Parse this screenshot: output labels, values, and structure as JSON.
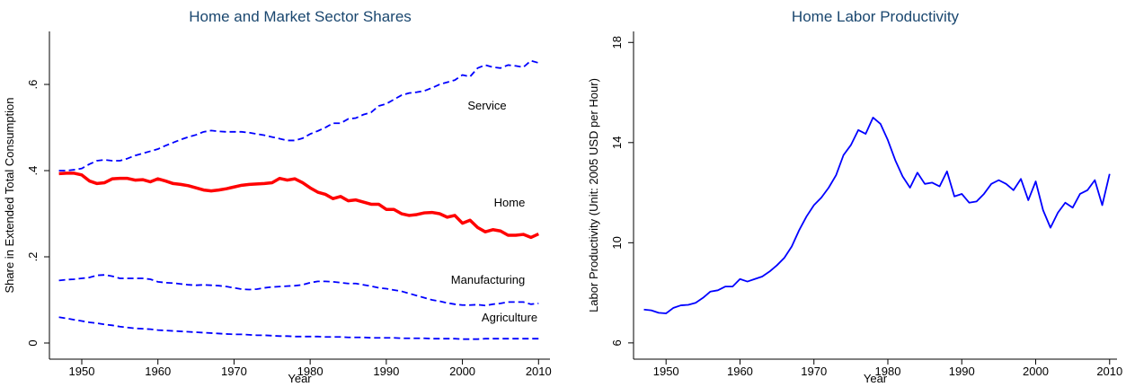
{
  "chart_data": [
    {
      "type": "line",
      "title": "Home and Market Sector Shares",
      "x_label": "Year",
      "y_label": "Share in Extended Total Consumption",
      "x": [
        1947,
        1948,
        1949,
        1950,
        1951,
        1952,
        1953,
        1954,
        1955,
        1956,
        1957,
        1958,
        1959,
        1960,
        1961,
        1962,
        1963,
        1964,
        1965,
        1966,
        1967,
        1968,
        1969,
        1970,
        1971,
        1972,
        1973,
        1974,
        1975,
        1976,
        1977,
        1978,
        1979,
        1980,
        1981,
        1982,
        1983,
        1984,
        1985,
        1986,
        1987,
        1988,
        1989,
        1990,
        1991,
        1992,
        1993,
        1994,
        1995,
        1996,
        1997,
        1998,
        1999,
        2000,
        2001,
        2002,
        2003,
        2004,
        2005,
        2006,
        2007,
        2008,
        2009,
        2010
      ],
      "series": [
        {
          "name": "Service",
          "color": "#0000ff",
          "line_style": "dashed",
          "line_width": 1.8,
          "values": [
            0.4,
            0.4,
            0.402,
            0.405,
            0.415,
            0.423,
            0.425,
            0.423,
            0.423,
            0.428,
            0.435,
            0.44,
            0.445,
            0.45,
            0.458,
            0.465,
            0.472,
            0.478,
            0.483,
            0.49,
            0.493,
            0.491,
            0.49,
            0.49,
            0.49,
            0.488,
            0.485,
            0.482,
            0.478,
            0.474,
            0.47,
            0.47,
            0.475,
            0.485,
            0.492,
            0.5,
            0.51,
            0.51,
            0.52,
            0.522,
            0.53,
            0.535,
            0.55,
            0.555,
            0.565,
            0.575,
            0.58,
            0.582,
            0.585,
            0.592,
            0.6,
            0.605,
            0.61,
            0.622,
            0.618,
            0.638,
            0.645,
            0.64,
            0.638,
            0.645,
            0.643,
            0.64,
            0.655,
            0.65
          ]
        },
        {
          "name": "Home",
          "color": "#ff0000",
          "line_style": "solid",
          "line_width": 3.5,
          "values": [
            0.393,
            0.394,
            0.394,
            0.39,
            0.376,
            0.37,
            0.372,
            0.381,
            0.382,
            0.382,
            0.378,
            0.379,
            0.374,
            0.381,
            0.376,
            0.37,
            0.368,
            0.365,
            0.36,
            0.355,
            0.353,
            0.355,
            0.358,
            0.362,
            0.366,
            0.368,
            0.369,
            0.37,
            0.372,
            0.382,
            0.378,
            0.381,
            0.372,
            0.36,
            0.35,
            0.345,
            0.335,
            0.34,
            0.33,
            0.332,
            0.327,
            0.322,
            0.322,
            0.31,
            0.31,
            0.3,
            0.296,
            0.298,
            0.302,
            0.303,
            0.3,
            0.292,
            0.296,
            0.278,
            0.285,
            0.268,
            0.258,
            0.263,
            0.26,
            0.25,
            0.25,
            0.252,
            0.245,
            0.253
          ]
        },
        {
          "name": "Manufacturing",
          "color": "#0000ff",
          "line_style": "dashed",
          "line_width": 1.8,
          "values": [
            0.145,
            0.147,
            0.148,
            0.15,
            0.152,
            0.157,
            0.158,
            0.155,
            0.15,
            0.15,
            0.15,
            0.15,
            0.148,
            0.142,
            0.14,
            0.139,
            0.137,
            0.135,
            0.134,
            0.135,
            0.134,
            0.133,
            0.131,
            0.128,
            0.125,
            0.124,
            0.125,
            0.128,
            0.13,
            0.131,
            0.132,
            0.133,
            0.135,
            0.14,
            0.143,
            0.143,
            0.142,
            0.14,
            0.138,
            0.138,
            0.135,
            0.132,
            0.128,
            0.126,
            0.123,
            0.12,
            0.115,
            0.11,
            0.105,
            0.1,
            0.097,
            0.093,
            0.09,
            0.088,
            0.088,
            0.089,
            0.087,
            0.09,
            0.092,
            0.095,
            0.095,
            0.095,
            0.09,
            0.092
          ]
        },
        {
          "name": "Agriculture",
          "color": "#0000ff",
          "line_style": "dashed",
          "line_width": 1.8,
          "values": [
            0.06,
            0.057,
            0.054,
            0.051,
            0.048,
            0.046,
            0.043,
            0.041,
            0.038,
            0.036,
            0.034,
            0.033,
            0.032,
            0.03,
            0.029,
            0.028,
            0.027,
            0.026,
            0.025,
            0.024,
            0.023,
            0.022,
            0.021,
            0.02,
            0.02,
            0.019,
            0.018,
            0.018,
            0.017,
            0.016,
            0.016,
            0.015,
            0.015,
            0.015,
            0.015,
            0.014,
            0.014,
            0.014,
            0.013,
            0.013,
            0.013,
            0.012,
            0.012,
            0.012,
            0.012,
            0.011,
            0.011,
            0.011,
            0.011,
            0.01,
            0.01,
            0.01,
            0.01,
            0.009,
            0.009,
            0.009,
            0.01,
            0.01,
            0.01,
            0.01,
            0.01,
            0.01,
            0.01,
            0.01
          ]
        }
      ],
      "xlim": [
        1945.75,
        2011.5
      ],
      "xticks": [
        1950,
        1960,
        1970,
        1980,
        1990,
        2000,
        2010
      ],
      "ylim": [
        -0.0375,
        0.723
      ],
      "yticks": [
        0,
        {
          "value": 0.2,
          "label": ".2"
        },
        {
          "value": 0.4,
          "label": ".4"
        },
        {
          "value": 0.6,
          "label": ".6"
        }
      ]
    },
    {
      "type": "line",
      "title": "Home Labor Productivity",
      "x_label": "Year",
      "y_label": "Labor Productivity (Unit: 2005 USD per Hour)",
      "x": [
        1947,
        1948,
        1949,
        1950,
        1951,
        1952,
        1953,
        1954,
        1955,
        1956,
        1957,
        1958,
        1959,
        1960,
        1961,
        1962,
        1963,
        1964,
        1965,
        1966,
        1967,
        1968,
        1969,
        1970,
        1971,
        1972,
        1973,
        1974,
        1975,
        1976,
        1977,
        1978,
        1979,
        1980,
        1981,
        1982,
        1983,
        1984,
        1985,
        1986,
        1987,
        1988,
        1989,
        1990,
        1991,
        1992,
        1993,
        1994,
        1995,
        1996,
        1997,
        1998,
        1999,
        2000,
        2001,
        2002,
        2003,
        2004,
        2005,
        2006,
        2007,
        2008,
        2009,
        2010
      ],
      "series": [
        {
          "color": "#0000ff",
          "line_style": "solid",
          "line_width": 1.8,
          "values": [
            7.33,
            7.3,
            7.2,
            7.18,
            7.4,
            7.5,
            7.52,
            7.6,
            7.8,
            8.05,
            8.1,
            8.25,
            8.25,
            8.55,
            8.45,
            8.55,
            8.65,
            8.85,
            9.1,
            9.4,
            9.85,
            10.5,
            11.05,
            11.5,
            11.8,
            12.2,
            12.7,
            13.5,
            13.9,
            14.5,
            14.35,
            15.0,
            14.75,
            14.1,
            13.3,
            12.65,
            12.2,
            12.8,
            12.35,
            12.4,
            12.25,
            12.85,
            11.85,
            11.95,
            11.6,
            11.65,
            11.95,
            12.35,
            12.5,
            12.35,
            12.1,
            12.55,
            11.7,
            12.45,
            11.3,
            10.6,
            11.2,
            11.6,
            11.4,
            11.95,
            12.1,
            12.5,
            11.5,
            12.75
          ]
        }
      ],
      "xlim": [
        1945.6,
        2011
      ],
      "xticks": [
        1950,
        1960,
        1970,
        1980,
        1990,
        2000,
        2010
      ],
      "ylim": [
        5.35,
        18.44
      ],
      "yticks": [
        6,
        10,
        14,
        18
      ]
    }
  ]
}
